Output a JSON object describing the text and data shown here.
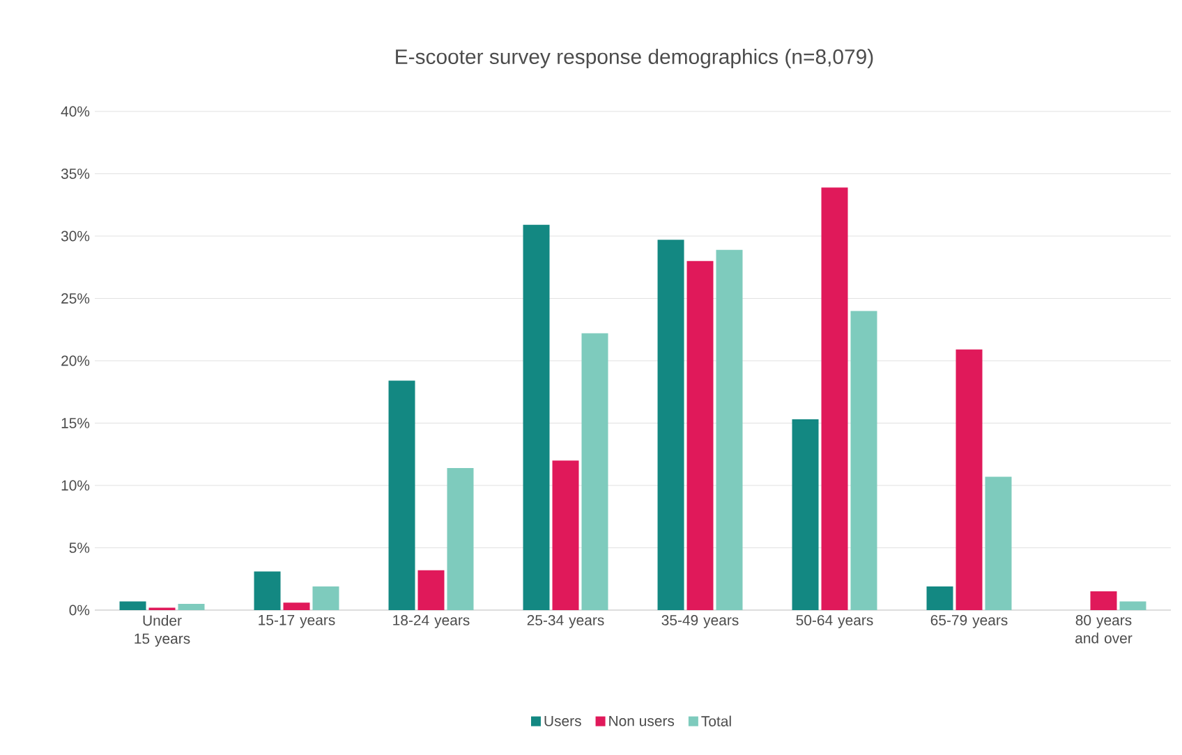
{
  "chart_data": {
    "type": "bar",
    "title": "E-scooter survey response demographics (n=8,079)",
    "categories": [
      "Under 15 years",
      "15-17 years",
      "18-24 years",
      "25-34 years",
      "35-49 years",
      "50-64 years",
      "65-79 years",
      "80 years and over"
    ],
    "series": [
      {
        "name": "Users",
        "color": "#138882",
        "values": [
          0.7,
          3.1,
          18.4,
          30.9,
          29.7,
          15.3,
          1.9,
          0
        ]
      },
      {
        "name": "Non users",
        "color": "#e0195a",
        "values": [
          0.2,
          0.6,
          3.2,
          12.0,
          28.0,
          33.9,
          20.9,
          1.5
        ]
      },
      {
        "name": "Total",
        "color": "#7ecbbd",
        "values": [
          0.5,
          1.9,
          11.4,
          22.2,
          28.9,
          24.0,
          10.7,
          0.7
        ]
      }
    ],
    "ylim": [
      0,
      40
    ],
    "yticks": [
      {
        "value": 0,
        "label": "0%"
      },
      {
        "value": 5,
        "label": "5%"
      },
      {
        "value": 10,
        "label": "10%"
      },
      {
        "value": 15,
        "label": "15%"
      },
      {
        "value": 20,
        "label": "20%"
      },
      {
        "value": 25,
        "label": "25%"
      },
      {
        "value": 30,
        "label": "30%"
      },
      {
        "value": 35,
        "label": "35%"
      },
      {
        "value": 40,
        "label": "40%"
      }
    ],
    "grid": "y",
    "legend": "bottom"
  }
}
